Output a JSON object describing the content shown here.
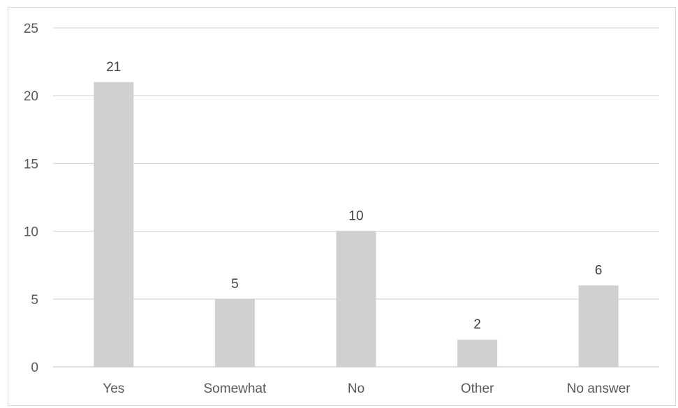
{
  "chart_data": {
    "type": "bar",
    "title": "",
    "xlabel": "",
    "ylabel": "",
    "categories": [
      "Yes",
      "Somewhat",
      "No",
      "Other",
      "No answer"
    ],
    "values": [
      21,
      5,
      10,
      2,
      6
    ],
    "data_labels": [
      "21",
      "5",
      "10",
      "2",
      "6"
    ],
    "ylim": [
      0,
      25
    ],
    "yticks": [
      "0",
      "5",
      "10",
      "15",
      "20",
      "25"
    ],
    "grid": true,
    "legend": "none",
    "bar_color": "#d0d0d0",
    "grid_color": "#d9d9d9"
  }
}
